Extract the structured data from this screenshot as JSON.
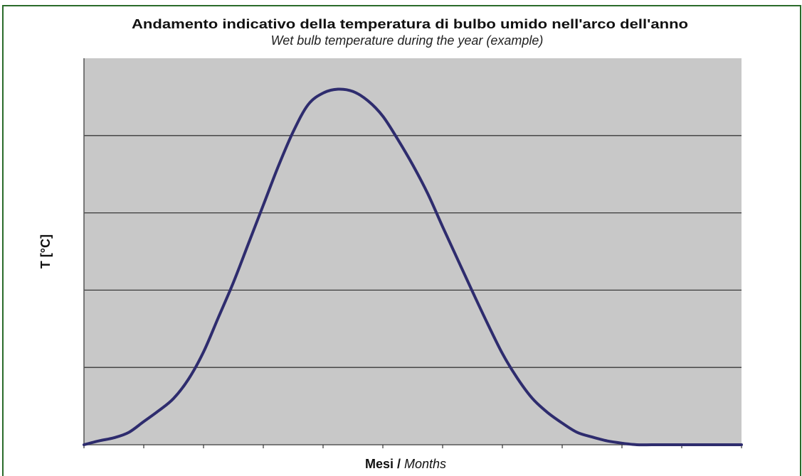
{
  "chart_data": {
    "type": "line",
    "title": "Andamento indicativo della temperatura di bulbo umido nell'arco dell'anno",
    "subtitle": "Wet bulb temperature during the year (example)",
    "xlabel_main": "Mesi",
    "xlabel_separator": " / ",
    "xlabel_italic": "Months",
    "ylabel": "T [°C]",
    "xlim": [
      0,
      11
    ],
    "ylim": [
      0,
      5
    ],
    "grid": true,
    "tick_labels_shown": false,
    "y_gridlines": [
      1,
      2,
      3,
      4
    ],
    "x_ticks": [
      0,
      1,
      2,
      3,
      4,
      5,
      6,
      7,
      8,
      9,
      10,
      11
    ],
    "colors": {
      "plot_background": "#c8c8c8",
      "line": "#2e2c6e",
      "gridline": "#3a3a3a",
      "frame_border": "#2a6b2a"
    },
    "series": [
      {
        "x": [
          0,
          0.25,
          0.5,
          0.75,
          1.0,
          1.25,
          1.5,
          1.75,
          2.0,
          2.25,
          2.5,
          2.75,
          3.0,
          3.25,
          3.5,
          3.75,
          4.0,
          4.25,
          4.5,
          4.75,
          5.0,
          5.25,
          5.5,
          5.75,
          6.0,
          6.25,
          6.5,
          6.75,
          7.0,
          7.25,
          7.5,
          7.75,
          8.0,
          8.25,
          8.5,
          8.75,
          9.0,
          9.25,
          9.5,
          9.75,
          10.0,
          10.25,
          10.5,
          10.75,
          11.0
        ],
        "values": [
          0.0,
          0.05,
          0.09,
          0.16,
          0.3,
          0.44,
          0.6,
          0.85,
          1.2,
          1.65,
          2.1,
          2.6,
          3.1,
          3.6,
          4.05,
          4.4,
          4.55,
          4.6,
          4.57,
          4.45,
          4.25,
          3.95,
          3.62,
          3.25,
          2.82,
          2.4,
          1.98,
          1.57,
          1.18,
          0.86,
          0.6,
          0.42,
          0.28,
          0.16,
          0.1,
          0.05,
          0.02,
          0.0,
          0.0,
          0.0,
          0.0,
          0.0,
          0.0,
          0.0,
          0.0
        ]
      }
    ]
  }
}
